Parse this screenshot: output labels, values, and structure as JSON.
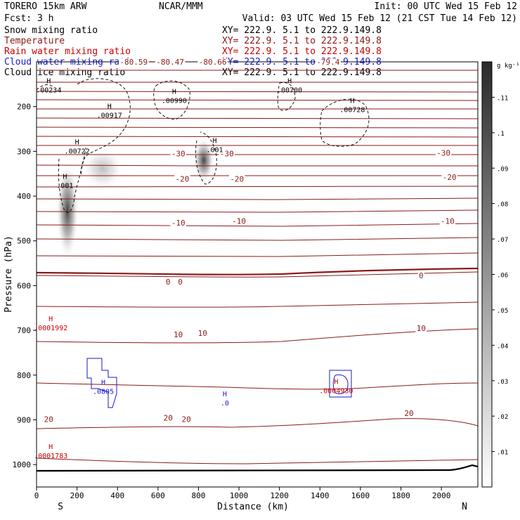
{
  "header": {
    "model": "TORERO  15km ARW",
    "org": "NCAR/MMM",
    "init": "Init: 00 UTC Wed 15 Feb 12",
    "fcst": "Fcst:    3 h",
    "valid": "Valid: 03 UTC Wed 15 Feb 12 (21 CST Tue 14 Feb 12)"
  },
  "legend": [
    {
      "name": "Snow mixing ratio",
      "xy": "XY= 222.9.  5.1 to 222.9.149.8",
      "color": "#000000"
    },
    {
      "name": "Temperature",
      "xy": "XY= 222.9.  5.1 to 222.9.149.8",
      "color": "#8b1a1a"
    },
    {
      "name": "Rain water mixing ratio",
      "xy": "XY= 222.9.  5.1 to 222.9.149.8",
      "color": "#cc0000"
    },
    {
      "name": "Cloud water mixing ratio",
      "xy": "XY= 222.9.  5.1 to 222.9.149.8",
      "color": "#1a1acc"
    },
    {
      "name": "Cloud ice mixing ratio",
      "xy": "XY= 222.9.  5.1 to 222.9.149.8",
      "color": "#000000"
    }
  ],
  "chart_data": {
    "type": "cross-section",
    "xlabel": "Distance (km)",
    "ylabel": "Pressure (hPa)",
    "xlim": [
      0,
      2180
    ],
    "ylim": [
      1050,
      100
    ],
    "x_ticks": [
      0,
      200,
      400,
      600,
      800,
      1000,
      1200,
      1400,
      1600,
      1800,
      2000
    ],
    "y_ticks": [
      200,
      300,
      400,
      500,
      600,
      700,
      800,
      900,
      1000
    ],
    "endpoints": {
      "left": "S",
      "right": "N"
    },
    "colorbar": {
      "unit": "g kg⁻¹",
      "ticks": [
        ".01",
        ".02",
        ".03",
        ".04",
        ".05",
        ".06",
        ".07",
        ".08",
        ".09",
        ".1",
        ".11"
      ]
    },
    "temperature_labels": [
      {
        "label": "-80.59",
        "x": 480,
        "p": 105
      },
      {
        "label": "-80.47",
        "x": 660,
        "p": 105
      },
      {
        "label": "-80.66",
        "x": 870,
        "p": 105
      },
      {
        "label": "-79.4",
        "x": 1440,
        "p": 105
      },
      {
        "label": "-30",
        "x": 700,
        "p": 310
      },
      {
        "label": "-30",
        "x": 940,
        "p": 310
      },
      {
        "label": "-30",
        "x": 2010,
        "p": 308
      },
      {
        "label": "-20",
        "x": 720,
        "p": 366
      },
      {
        "label": "-20",
        "x": 990,
        "p": 366
      },
      {
        "label": "-20",
        "x": 2040,
        "p": 362
      },
      {
        "label": "-10",
        "x": 700,
        "p": 464
      },
      {
        "label": "-10",
        "x": 1000,
        "p": 460
      },
      {
        "label": "-10",
        "x": 2030,
        "p": 460
      },
      {
        "label": "0",
        "x": 650,
        "p": 596
      },
      {
        "label": "0",
        "x": 710,
        "p": 596
      },
      {
        "label": "0",
        "x": 1900,
        "p": 582
      },
      {
        "label": "10",
        "x": 700,
        "p": 714
      },
      {
        "label": "10",
        "x": 820,
        "p": 711
      },
      {
        "label": "10",
        "x": 1900,
        "p": 700
      },
      {
        "label": "20",
        "x": 60,
        "p": 903
      },
      {
        "label": "20",
        "x": 650,
        "p": 900
      },
      {
        "label": "20",
        "x": 740,
        "p": 903
      },
      {
        "label": "20",
        "x": 1840,
        "p": 890
      }
    ],
    "maxima_labels": [
      {
        "label": ".00234",
        "x": 60,
        "p": 168,
        "color": "#000000"
      },
      {
        "label": ".00917",
        "x": 360,
        "p": 225,
        "color": "#000000"
      },
      {
        "label": ".00990",
        "x": 680,
        "p": 192,
        "color": "#000000"
      },
      {
        "label": ".00722",
        "x": 200,
        "p": 305,
        "color": "#000000"
      },
      {
        "label": ".001",
        "x": 140,
        "p": 382,
        "color": "#000000"
      },
      {
        "label": ".001",
        "x": 880,
        "p": 302,
        "color": "#000000"
      },
      {
        "label": ".00700",
        "x": 1250,
        "p": 168,
        "color": "#000000"
      },
      {
        "label": ".00728",
        "x": 1560,
        "p": 212,
        "color": "#000000"
      },
      {
        "label": ".0001992",
        "x": 70,
        "p": 700,
        "color": "#cc0000"
      },
      {
        "label": ".0001783",
        "x": 70,
        "p": 986,
        "color": "#cc0000"
      },
      {
        "label": ".0805",
        "x": 330,
        "p": 842,
        "color": "#1a1acc"
      },
      {
        "label": ".0",
        "x": 930,
        "p": 868,
        "color": "#1a1acc"
      },
      {
        "label": ".0004930",
        "x": 1480,
        "p": 840,
        "color": "#cc0000"
      }
    ]
  }
}
